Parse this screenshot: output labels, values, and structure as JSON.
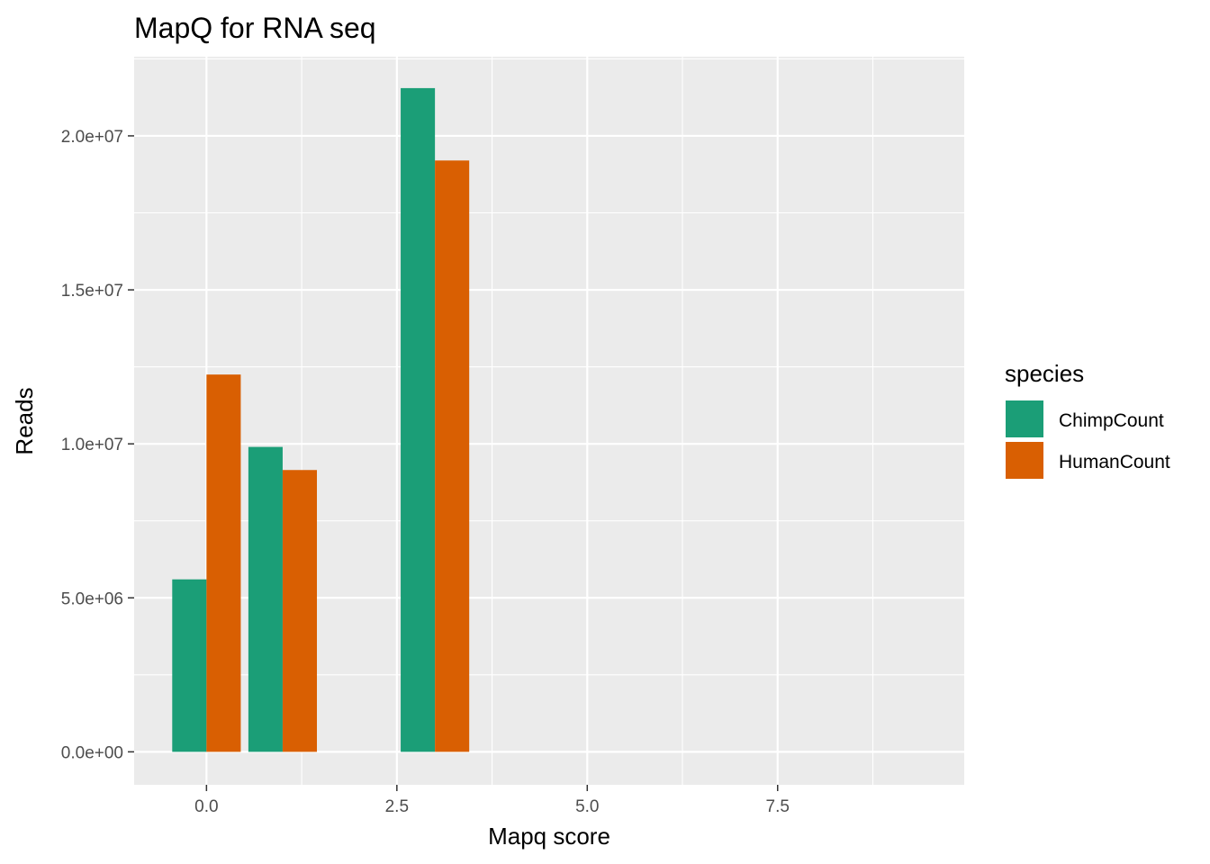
{
  "chart_data": {
    "type": "bar",
    "title": "MapQ for RNA seq",
    "xlabel": "Mapq score",
    "ylabel": "Reads",
    "x": [
      0,
      1,
      3
    ],
    "series": [
      {
        "name": "ChimpCount",
        "color": "#1B9E77",
        "values": [
          5600000,
          9900000,
          21550000
        ]
      },
      {
        "name": "HumanCount",
        "color": "#D95F02",
        "values": [
          12250000,
          9150000,
          19200000
        ]
      }
    ],
    "xlim": [
      -0.95,
      9.95
    ],
    "ylim": [
      -1070000,
      22570000
    ],
    "x_ticks": [
      0,
      2.5,
      5,
      7.5
    ],
    "x_tick_labels": [
      "0.0",
      "2.5",
      "5.0",
      "7.5"
    ],
    "y_ticks": [
      0,
      5000000,
      10000000,
      15000000,
      20000000
    ],
    "y_tick_labels": [
      "0.0e+00",
      "5.0e+06",
      "1.0e+07",
      "1.5e+07",
      "2.0e+07"
    ],
    "bar_width": 0.9,
    "legend": {
      "title": "species",
      "position": "right"
    },
    "background": "#EBEBEB",
    "gridline_color": "#FFFFFF",
    "grid": true
  }
}
